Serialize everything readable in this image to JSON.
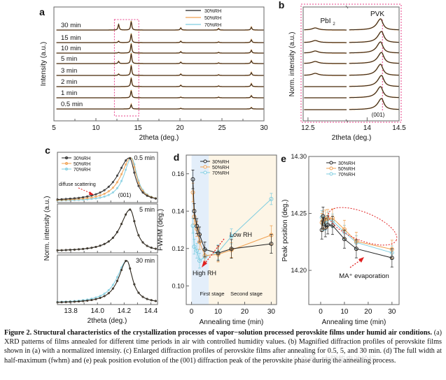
{
  "figure_caption": {
    "bold": "Figure 2. Structural characteristics of the crystallization processes of vapor−solution processed perovskite films under humid air conditions.",
    "body": "(a) XRD patterns of films annealed for different time periods in air with controlled humidity values. (b) Magnified diffraction profiles of perovskite films shown in (a) with a normalized intensity. (c) Enlarged diffraction profiles of perovskite films after annealing for 0.5, 5, and 30 min. (d) The full width at half-maximum (fwhm) and (e) peak position evolution of the (001) diffraction peak of the perovskite phase during the annealing process."
  },
  "watermark": "公众号 · 太阳能电池论坛",
  "colors": {
    "rh30": "#222222",
    "rh50": "#f0a050",
    "rh70": "#7fcde0",
    "highlight": "#e8408a",
    "arrow": "#e02020",
    "stage1": "#e3eefa",
    "stage2": "#fdf5e6"
  },
  "chart_data": [
    {
      "panel": "a",
      "type": "line",
      "title": "",
      "xlabel": "2theta (deg.)",
      "ylabel": "Intensity (a.u.)",
      "xlim": [
        5,
        30
      ],
      "xticks": [
        "5",
        "10",
        "15",
        "20",
        "25",
        "30"
      ],
      "legend": [
        "30%RH",
        "50%RH",
        "70%RH"
      ],
      "legend_position": "top-right",
      "traces": [
        "30 min",
        "15 min",
        "10 min",
        "5 min",
        "3 min",
        "2 min",
        "1 min",
        "0.5 min"
      ],
      "peaks_deg": [
        12.7,
        14.2,
        20.1,
        24.6,
        28.5
      ],
      "highlight_box_deg": [
        12.2,
        15.1
      ]
    },
    {
      "panel": "b",
      "type": "line",
      "xlabel": "2theta (deg.)",
      "ylabel": "Norm. intensity (a.u.)",
      "xlim": [
        12.4,
        14.5
      ],
      "xticks": [
        "12.5",
        "14",
        "14.5"
      ],
      "annotations": [
        "PbI2",
        "PVK",
        "(001)"
      ],
      "reference_line_deg": 14.24,
      "traces": 8
    },
    {
      "panel": "c",
      "type": "line",
      "xlabel": "2theta (deg.)",
      "ylabel": "Norm. intensity (a.u.)",
      "xlim": [
        13.7,
        14.45
      ],
      "xticks": [
        "13.8",
        "14.0",
        "14.2",
        "14.4"
      ],
      "subpanels": [
        "0.5 min",
        "5 min",
        "30 min"
      ],
      "legend": [
        "30%RH",
        "50%RH",
        "70%RH"
      ],
      "annotations": [
        "diffuse scattering",
        "(001)"
      ]
    },
    {
      "panel": "d",
      "type": "line",
      "xlabel": "Annealing time (min)",
      "ylabel": "FWHM (deg.)",
      "xlim": [
        -2,
        32
      ],
      "ylim": [
        0.09,
        0.17
      ],
      "xticks": [
        "0",
        "10",
        "20",
        "30"
      ],
      "yticks": [
        "0.10",
        "0.12",
        "0.14",
        "0.16"
      ],
      "legend": [
        "30%RH",
        "50%RH",
        "70%RH"
      ],
      "annotations": [
        "Low RH",
        "High RH",
        "First stage",
        "Second stage"
      ],
      "stage_boundary_min": 6.5,
      "x": [
        0.5,
        1,
        2,
        3,
        5,
        10,
        15,
        30
      ],
      "series": [
        {
          "name": "30%RH",
          "values": [
            0.157,
            0.14,
            0.132,
            0.1275,
            0.1195,
            0.1175,
            0.1198,
            0.1225
          ],
          "err": [
            0.005,
            0.004,
            0.004,
            0.004,
            0.004,
            0.004,
            0.005,
            0.005
          ]
        },
        {
          "name": "50%RH",
          "values": [
            0.15,
            0.137,
            0.1305,
            0.1235,
            0.1162,
            0.1168,
            0.1192,
            0.1272
          ],
          "err": [
            0.005,
            0.004,
            0.004,
            0.004,
            0.003,
            0.004,
            0.004,
            0.005
          ]
        },
        {
          "name": "70%RH",
          "values": [
            0.1322,
            0.121,
            0.1188,
            0.1135,
            0.1155,
            0.118,
            0.1265,
            0.1465
          ],
          "err": [
            0.004,
            0.004,
            0.004,
            0.004,
            0.004,
            0.004,
            0.004,
            0.003
          ]
        }
      ]
    },
    {
      "panel": "e",
      "type": "line",
      "xlabel": "Annealing time (min)",
      "ylabel": "Peak position (deg.)",
      "xlim": [
        -5,
        33
      ],
      "ylim": [
        14.17,
        14.3
      ],
      "xticks": [
        "0",
        "10",
        "20",
        "30"
      ],
      "yticks": [
        "14.20",
        "14.25",
        "14.30"
      ],
      "legend": [
        "30%RH",
        "50%RH",
        "70%RH"
      ],
      "annotations": [
        "MA⁺ evaporation"
      ],
      "x": [
        0.5,
        1,
        2,
        3,
        5,
        10,
        15,
        30
      ],
      "series": [
        {
          "name": "30%RH",
          "values": [
            14.2355,
            14.2475,
            14.2375,
            14.24,
            14.2395,
            14.2275,
            14.219,
            14.211
          ],
          "err": [
            0.008,
            0.008,
            0.008,
            0.008,
            0.008,
            0.008,
            0.008,
            0.008
          ]
        },
        {
          "name": "50%RH",
          "values": [
            14.242,
            14.244,
            14.245,
            14.2455,
            14.246,
            14.236,
            14.2255,
            14.2185
          ],
          "err": [
            0.008,
            0.008,
            0.008,
            0.008,
            0.008,
            0.008,
            0.008,
            0.008
          ]
        },
        {
          "name": "70%RH",
          "values": [
            14.2465,
            14.241,
            14.2415,
            14.245,
            14.2435,
            14.2335,
            14.2245,
            14.2155
          ],
          "err": [
            0.006,
            0.006,
            0.006,
            0.006,
            0.006,
            0.006,
            0.006,
            0.006
          ]
        }
      ]
    }
  ]
}
